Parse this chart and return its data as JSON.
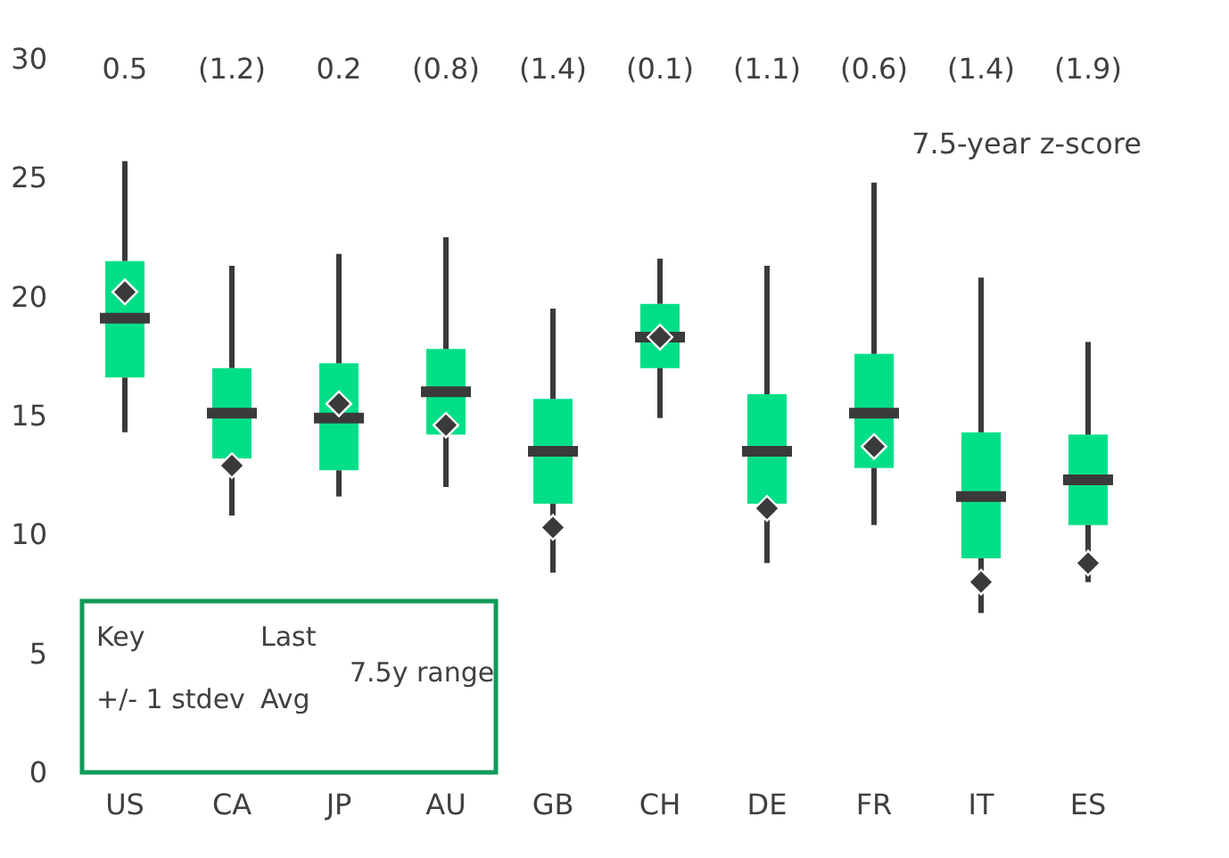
{
  "chart_data": {
    "type": "box",
    "categories": [
      "US",
      "CA",
      "JP",
      "AU",
      "GB",
      "CH",
      "DE",
      "FR",
      "IT",
      "ES"
    ],
    "series": [
      {
        "type": "box",
        "color": "#00df87",
        "boxes": [
          {
            "low": 14.3,
            "q1": 16.6,
            "median": 19.1,
            "q3": 21.5,
            "high": 25.7
          },
          {
            "low": 10.8,
            "q1": 13.2,
            "median": 15.1,
            "q3": 17.0,
            "high": 21.3
          },
          {
            "low": 11.6,
            "q1": 12.7,
            "median": 14.9,
            "q3": 17.2,
            "high": 21.8
          },
          {
            "low": 12.0,
            "q1": 14.2,
            "median": 16.0,
            "q3": 17.8,
            "high": 22.5
          },
          {
            "low": 8.4,
            "q1": 11.3,
            "median": 13.5,
            "q3": 15.7,
            "high": 19.5
          },
          {
            "low": 14.9,
            "q1": 17.0,
            "median": 18.3,
            "q3": 19.7,
            "high": 21.6
          },
          {
            "low": 8.8,
            "q1": 11.3,
            "median": 13.5,
            "q3": 15.9,
            "high": 21.3
          },
          {
            "low": 10.4,
            "q1": 12.8,
            "median": 15.1,
            "q3": 17.6,
            "high": 24.8
          },
          {
            "low": 6.7,
            "q1": 9.0,
            "median": 11.6,
            "q3": 14.3,
            "high": 20.8
          },
          {
            "low": 8.0,
            "q1": 10.4,
            "median": 12.3,
            "q3": 14.2,
            "high": 18.1
          }
        ]
      },
      {
        "type": "scatter",
        "color": "#3a3a3a",
        "marker": "diamond",
        "x": [
          "US",
          "CA",
          "JP",
          "AU",
          "GB",
          "CH",
          "DE",
          "FR",
          "IT",
          "ES"
        ],
        "values": [
          20.2,
          12.9,
          15.5,
          14.6,
          10.3,
          18.3,
          11.1,
          13.7,
          8.0,
          8.8
        ]
      }
    ],
    "ylim": [
      0,
      30
    ],
    "yticks": [
      0,
      5,
      10,
      15,
      20,
      25,
      30
    ],
    "annotations": [
      "0.5",
      "(1.2)",
      "0.2",
      "(0.8)",
      "(1.4)",
      "(0.1)",
      "(1.1)",
      "(0.6)",
      "(1.4)",
      "(1.9)",
      "7.5-year z-score",
      "Key",
      "Last",
      "Avg",
      "+/- 1 stdev",
      "7.5y range"
    ]
  }
}
